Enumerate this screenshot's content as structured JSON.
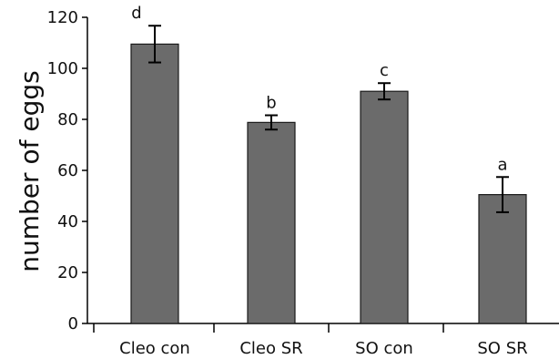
{
  "chart_data": {
    "type": "bar",
    "title": "",
    "xlabel": "",
    "ylabel": "number of eggs",
    "ylim": [
      0,
      120
    ],
    "yticks": [
      "0",
      "20",
      "40",
      "60",
      "80",
      "100",
      "120"
    ],
    "categories": [
      "Cleo con",
      "Cleo SR",
      "SO con",
      "SO SR"
    ],
    "values": [
      109.5,
      78.8,
      91.0,
      50.5
    ],
    "errors": [
      7.2,
      2.8,
      3.2,
      6.9
    ],
    "letters": [
      "d",
      "b",
      "c",
      "a"
    ],
    "grid": false,
    "legend": "none",
    "colors": {
      "bar": "#6b6b6b",
      "bar_edge": "#1a1a1a",
      "axis": "#000000"
    }
  }
}
